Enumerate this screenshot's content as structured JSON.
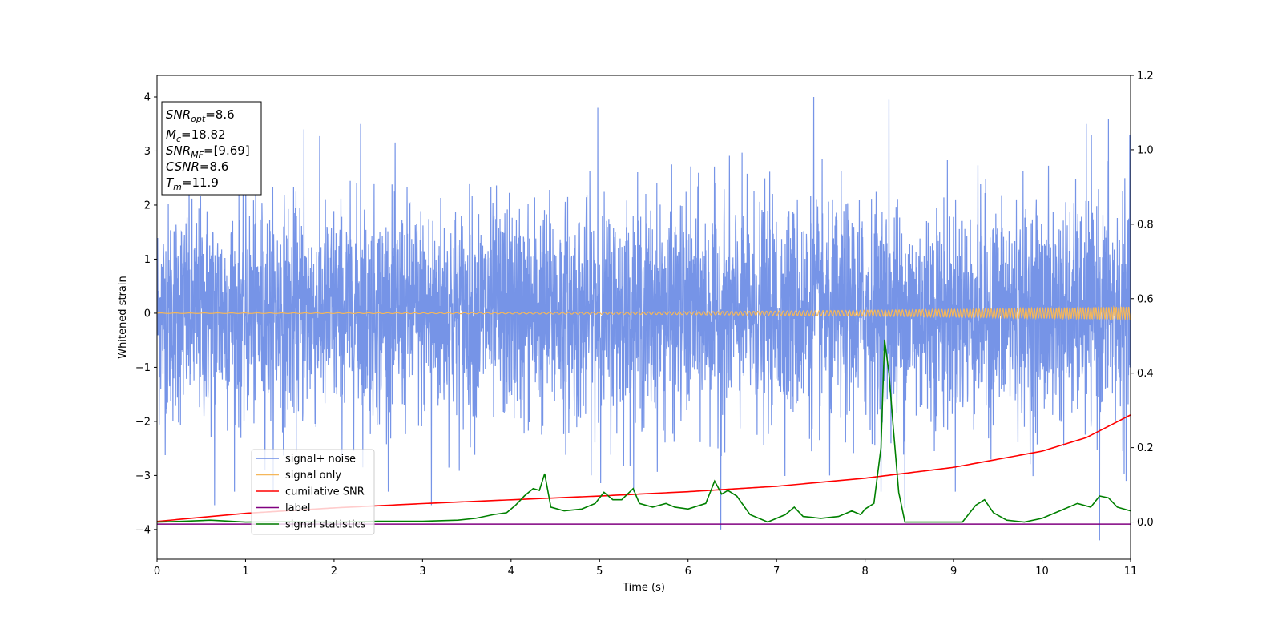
{
  "chart_data": {
    "type": "line",
    "xlabel": "Time (s)",
    "ylabel": "Whitened strain",
    "xlim": [
      0,
      11
    ],
    "ylim": [
      -4.55,
      4.4
    ],
    "y2lim": [
      -0.1,
      1.2
    ],
    "xticks": [
      0,
      1,
      2,
      3,
      4,
      5,
      6,
      7,
      8,
      9,
      10,
      11
    ],
    "yticks": [
      -4,
      -3,
      -2,
      -1,
      0,
      1,
      2,
      3,
      4
    ],
    "y2ticks": [
      "0.0",
      "0.2",
      "0.4",
      "0.6",
      "0.8",
      "1.0",
      "1.2"
    ],
    "y2tick_values": [
      0.0,
      0.2,
      0.4,
      0.6,
      0.8,
      1.0,
      1.2
    ],
    "legend_position": "lower-left",
    "series": [
      {
        "name": "signal+ noise",
        "axis": "left",
        "color": "#6f8ee6",
        "description_values": {
          "typical_range": [
            -2.4,
            2.4
          ],
          "peaks": [
            [
              1.66,
              3.4
            ],
            [
              2.3,
              3.5
            ],
            [
              4.98,
              3.8
            ],
            [
              7.42,
              4.0
            ],
            [
              8.27,
              3.95
            ],
            [
              8.45,
              3.8
            ],
            [
              10.5,
              3.5
            ],
            [
              10.75,
              3.6
            ]
          ],
          "troughs": [
            [
              0.65,
              -3.55
            ],
            [
              3.1,
              -3.55
            ],
            [
              6.37,
              -4.0
            ],
            [
              7.6,
              -3.0
            ],
            [
              8.45,
              -3.6
            ],
            [
              10.65,
              -4.2
            ],
            [
              10.95,
              -3.1
            ]
          ]
        }
      },
      {
        "name": "signal only",
        "axis": "left",
        "color": "#f5b75a",
        "amplitude_start": 0.005,
        "amplitude_end": 0.12
      },
      {
        "name": "cumilative SNR",
        "axis": "left",
        "color": "#ff0000",
        "x": [
          0,
          1,
          2,
          3,
          4,
          5,
          6,
          7,
          8,
          9,
          10,
          10.5,
          11
        ],
        "y": [
          -3.85,
          -3.7,
          -3.6,
          -3.52,
          -3.45,
          -3.38,
          -3.3,
          -3.2,
          -3.05,
          -2.85,
          -2.55,
          -2.3,
          -1.88
        ]
      },
      {
        "name": "label",
        "axis": "left",
        "color": "#800080",
        "x": [
          0,
          11
        ],
        "y": [
          -3.9,
          -3.9
        ]
      },
      {
        "name": "signal statistics",
        "axis": "right",
        "color": "#008000",
        "x": [
          0,
          0.3,
          0.6,
          1.0,
          1.5,
          2.0,
          2.5,
          3.0,
          3.4,
          3.6,
          3.8,
          3.95,
          4.05,
          4.15,
          4.25,
          4.32,
          4.38,
          4.45,
          4.6,
          4.8,
          4.95,
          5.05,
          5.15,
          5.25,
          5.38,
          5.45,
          5.6,
          5.75,
          5.85,
          6.0,
          6.2,
          6.3,
          6.38,
          6.45,
          6.55,
          6.7,
          6.9,
          7.1,
          7.2,
          7.3,
          7.5,
          7.7,
          7.85,
          7.95,
          8.0,
          8.1,
          8.18,
          8.22,
          8.27,
          8.32,
          8.38,
          8.45,
          8.55,
          8.7,
          8.9,
          9.1,
          9.25,
          9.35,
          9.45,
          9.6,
          9.8,
          10.0,
          10.2,
          10.4,
          10.55,
          10.65,
          10.75,
          10.85,
          11.0
        ],
        "y": [
          0.0,
          0.002,
          0.005,
          0.0,
          0.001,
          0.0,
          0.002,
          0.002,
          0.005,
          0.01,
          0.02,
          0.025,
          0.045,
          0.07,
          0.09,
          0.085,
          0.13,
          0.04,
          0.03,
          0.035,
          0.05,
          0.08,
          0.06,
          0.06,
          0.09,
          0.05,
          0.04,
          0.05,
          0.04,
          0.035,
          0.05,
          0.11,
          0.075,
          0.085,
          0.07,
          0.02,
          0.0,
          0.02,
          0.04,
          0.015,
          0.01,
          0.015,
          0.03,
          0.02,
          0.035,
          0.05,
          0.2,
          0.49,
          0.4,
          0.25,
          0.08,
          0.0,
          0.0,
          0.0,
          0.0,
          0.0,
          0.045,
          0.06,
          0.025,
          0.005,
          0.0,
          0.01,
          0.03,
          0.05,
          0.04,
          0.07,
          0.065,
          0.04,
          0.03
        ]
      }
    ],
    "annotation_lines": [
      {
        "parts": [
          {
            "t": "SNR",
            "italic": true
          },
          {
            "t": "opt",
            "italic": true,
            "sub": true
          },
          {
            "t": "=8.6"
          }
        ]
      },
      {
        "parts": [
          {
            "t": "M",
            "italic": true
          },
          {
            "t": "c",
            "italic": true,
            "sub": true
          },
          {
            "t": "=18.82"
          }
        ]
      },
      {
        "parts": [
          {
            "t": "SNR",
            "italic": true
          },
          {
            "t": "MF",
            "italic": true,
            "sub": true
          },
          {
            "t": "=[9.69]"
          }
        ]
      },
      {
        "parts": [
          {
            "t": "CSNR",
            "italic": true
          },
          {
            "t": "=8.6"
          }
        ]
      },
      {
        "parts": [
          {
            "t": "T",
            "italic": true
          },
          {
            "t": "m",
            "italic": true,
            "sub": true
          },
          {
            "t": "=11.9"
          }
        ]
      }
    ]
  }
}
